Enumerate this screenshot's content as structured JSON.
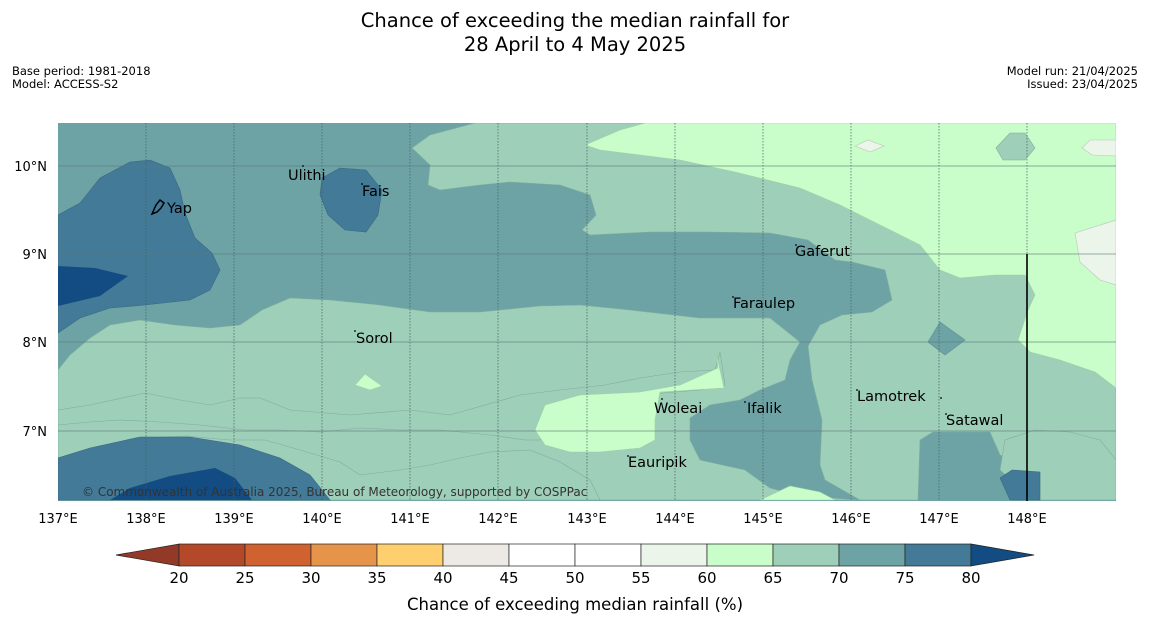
{
  "title": {
    "line1": "Chance of exceeding the median rainfall for",
    "line2": "28 April to 4 May 2025"
  },
  "meta_left": {
    "base_period": "Base period: 1981-2018",
    "model": "Model: ACCESS-S2"
  },
  "meta_right": {
    "model_run": "Model run: 21/04/2025",
    "issued": "Issued: 23/04/2025"
  },
  "map": {
    "lon_range": [
      137,
      149
    ],
    "lat_range": [
      6.2,
      10.5
    ],
    "lon_ticks": [
      "137°E",
      "138°E",
      "139°E",
      "140°E",
      "141°E",
      "142°E",
      "143°E",
      "144°E",
      "145°E",
      "146°E",
      "147°E",
      "148°E"
    ],
    "lat_ticks": [
      "10°N",
      "9°N",
      "8°N",
      "7°N"
    ],
    "places": [
      {
        "name": "Ulithi"
      },
      {
        "name": "Yap"
      },
      {
        "name": "Fais"
      },
      {
        "name": "Gaferut"
      },
      {
        "name": "Faraulep"
      },
      {
        "name": "Sorol"
      },
      {
        "name": "Lamotrek"
      },
      {
        "name": "Woleai"
      },
      {
        "name": "Ifalik"
      },
      {
        "name": "Satawal"
      },
      {
        "name": "Eauripik"
      }
    ],
    "copyright": "© Commonwealth of Australia 2025, Bureau of Meteorology, supported by COSPPac"
  },
  "colorbar": {
    "ticks": [
      "20",
      "25",
      "30",
      "35",
      "40",
      "45",
      "50",
      "55",
      "60",
      "65",
      "70",
      "75",
      "80"
    ],
    "colors": [
      "#b4492a",
      "#d0622f",
      "#e5944a",
      "#fdcf6e",
      "#ede9e4",
      "#ffffff",
      "#ffffff",
      "#ebf5ea",
      "#c9fdc9",
      "#9ecfb9",
      "#6ea3a6",
      "#427a98"
    ],
    "under_color": "#923a27",
    "over_color": "#134c82",
    "label": "Chance of exceeding median rainfall (%)"
  }
}
